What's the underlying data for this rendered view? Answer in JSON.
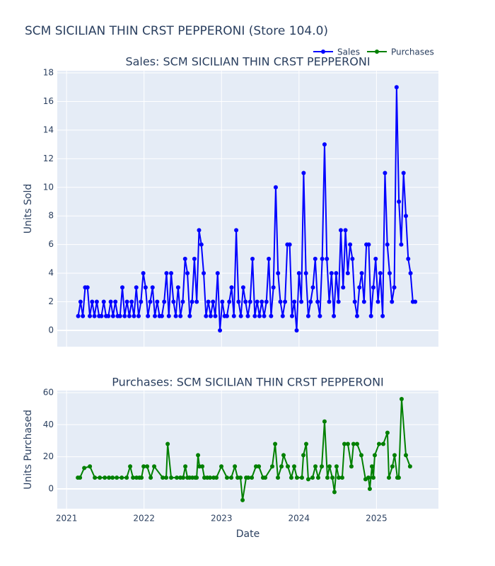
{
  "title": "SCM SICILIAN THIN CRST PEPPERONI (Store 104.0)",
  "chart_data": [
    {
      "type": "line",
      "title": "Sales: SCM SICILIAN THIN CRST PEPPERONI",
      "ylabel": "Units Sold",
      "xlim": [
        2020.88,
        2025.8
      ],
      "xticks": [
        2021,
        2022,
        2023,
        2024,
        2025
      ],
      "ylim": [
        -1.14,
        18.15
      ],
      "yticks": [
        0,
        2,
        4,
        6,
        8,
        10,
        12,
        14,
        16,
        18
      ],
      "grid": true,
      "x": [
        2021.15,
        2021.18,
        2021.21,
        2021.24,
        2021.27,
        2021.3,
        2021.33,
        2021.36,
        2021.39,
        2021.42,
        2021.45,
        2021.48,
        2021.51,
        2021.54,
        2021.57,
        2021.6,
        2021.63,
        2021.66,
        2021.69,
        2021.72,
        2021.75,
        2021.78,
        2021.81,
        2021.84,
        2021.87,
        2021.9,
        2021.93,
        2021.96,
        2021.99,
        2022.02,
        2022.05,
        2022.08,
        2022.11,
        2022.14,
        2022.17,
        2022.2,
        2022.23,
        2022.26,
        2022.29,
        2022.32,
        2022.35,
        2022.38,
        2022.41,
        2022.44,
        2022.47,
        2022.5,
        2022.53,
        2022.56,
        2022.59,
        2022.62,
        2022.65,
        2022.68,
        2022.71,
        2022.74,
        2022.77,
        2022.8,
        2022.83,
        2022.86,
        2022.89,
        2022.92,
        2022.95,
        2022.98,
        2023.01,
        2023.04,
        2023.07,
        2023.1,
        2023.13,
        2023.16,
        2023.19,
        2023.22,
        2023.25,
        2023.28,
        2023.31,
        2023.34,
        2023.37,
        2023.4,
        2023.43,
        2023.46,
        2023.49,
        2023.52,
        2023.55,
        2023.58,
        2023.61,
        2023.64,
        2023.67,
        2023.7,
        2023.73,
        2023.76,
        2023.79,
        2023.82,
        2023.85,
        2023.88,
        2023.91,
        2023.94,
        2023.97,
        2024.0,
        2024.03,
        2024.06,
        2024.09,
        2024.12,
        2024.15,
        2024.18,
        2024.21,
        2024.24,
        2024.27,
        2024.3,
        2024.33,
        2024.36,
        2024.39,
        2024.42,
        2024.45,
        2024.48,
        2024.51,
        2024.54,
        2024.57,
        2024.6,
        2024.63,
        2024.66,
        2024.69,
        2024.72,
        2024.75,
        2024.78,
        2024.81,
        2024.84,
        2024.87,
        2024.9,
        2024.93,
        2024.96,
        2024.99,
        2025.02,
        2025.05,
        2025.08,
        2025.11,
        2025.14,
        2025.17,
        2025.2,
        2025.23,
        2025.26,
        2025.29,
        2025.32,
        2025.35,
        2025.38,
        2025.41,
        2025.44,
        2025.47,
        2025.5
      ],
      "series": [
        {
          "name": "Sales",
          "color": "#0000ff",
          "values": [
            1,
            2,
            1,
            3,
            3,
            1,
            2,
            1,
            2,
            1,
            1,
            2,
            1,
            1,
            2,
            1,
            2,
            1,
            1,
            3,
            1,
            2,
            1,
            2,
            1,
            3,
            1,
            2,
            4,
            3,
            1,
            2,
            3,
            1,
            2,
            1,
            1,
            2,
            4,
            1,
            4,
            2,
            1,
            3,
            1,
            2,
            5,
            4,
            1,
            2,
            5,
            2,
            7,
            6,
            4,
            1,
            2,
            1,
            2,
            1,
            4,
            0,
            2,
            1,
            1,
            2,
            3,
            1,
            7,
            2,
            1,
            3,
            2,
            1,
            2,
            5,
            1,
            2,
            1,
            2,
            1,
            2,
            5,
            1,
            3,
            10,
            4,
            2,
            1,
            2,
            6,
            6,
            1,
            2,
            0,
            4,
            2,
            11,
            4,
            1,
            2,
            3,
            5,
            2,
            1,
            5,
            13,
            5,
            2,
            4,
            1,
            4,
            2,
            7,
            3,
            7,
            4,
            6,
            5,
            2,
            1,
            3,
            4,
            2,
            6,
            6,
            1,
            3,
            5,
            2,
            4,
            1,
            11,
            6,
            4,
            2,
            3,
            17,
            9,
            6,
            11,
            8,
            5,
            4,
            2,
            2
          ]
        }
      ]
    },
    {
      "type": "line",
      "title": "Purchases: SCM SICILIAN THIN CRST PEPPERONI",
      "ylabel": "Units Purchased",
      "xlabel": "Date",
      "xlim": [
        2020.88,
        2025.8
      ],
      "xticks": [
        2021,
        2022,
        2023,
        2024,
        2025
      ],
      "ylim": [
        -12.35,
        61.3
      ],
      "yticks": [
        0,
        20,
        40,
        60
      ],
      "grid": true,
      "x": [
        2021.146,
        2021.173,
        2021.228,
        2021.301,
        2021.365,
        2021.429,
        2021.493,
        2021.547,
        2021.593,
        2021.648,
        2021.712,
        2021.776,
        2021.821,
        2021.858,
        2021.903,
        2021.94,
        2021.967,
        2021.995,
        2022.04,
        2022.086,
        2022.131,
        2022.241,
        2022.286,
        2022.305,
        2022.35,
        2022.423,
        2022.469,
        2022.505,
        2022.533,
        2022.56,
        2022.588,
        2022.624,
        2022.661,
        2022.679,
        2022.697,
        2022.715,
        2022.752,
        2022.779,
        2022.816,
        2022.852,
        2022.898,
        2022.934,
        2022.998,
        2023.071,
        2023.126,
        2023.172,
        2023.208,
        2023.245,
        2023.272,
        2023.318,
        2023.345,
        2023.391,
        2023.445,
        2023.482,
        2023.536,
        2023.564,
        2023.655,
        2023.692,
        2023.728,
        2023.774,
        2023.801,
        2023.856,
        2023.901,
        2023.938,
        2023.974,
        2024.038,
        2024.057,
        2024.093,
        2024.12,
        2024.175,
        2024.212,
        2024.248,
        2024.294,
        2024.33,
        2024.367,
        2024.394,
        2024.431,
        2024.458,
        2024.485,
        2024.513,
        2024.558,
        2024.586,
        2024.631,
        2024.677,
        2024.704,
        2024.75,
        2024.805,
        2024.859,
        2024.896,
        2024.914,
        2024.942,
        2024.96,
        2024.978,
        2025.033,
        2025.088,
        2025.142,
        2025.161,
        2025.206,
        2025.234,
        2025.27,
        2025.288,
        2025.325,
        2025.38,
        2025.434
      ],
      "series": [
        {
          "name": "Purchases",
          "color": "#008000",
          "values": [
            7,
            7,
            13,
            14,
            7,
            7,
            7,
            7,
            7,
            7,
            7,
            7,
            14,
            7,
            7,
            7,
            7,
            14,
            14,
            7,
            14,
            7,
            7,
            28,
            7,
            7,
            7,
            7,
            14,
            7,
            7,
            7,
            7,
            7,
            21,
            14,
            14,
            7,
            7,
            7,
            7,
            7,
            14,
            7,
            7,
            14,
            7,
            7,
            -7,
            7,
            7,
            7,
            14,
            14,
            7,
            7,
            14,
            28,
            7,
            14,
            21,
            14,
            7,
            14,
            7,
            7,
            21,
            28,
            6,
            7,
            14,
            7,
            14,
            42,
            7,
            14,
            7,
            -2,
            14,
            7,
            7,
            28,
            28,
            14,
            28,
            28,
            21,
            6,
            7,
            0,
            14,
            7,
            21,
            28,
            28,
            35,
            7,
            14,
            21,
            7,
            7,
            56,
            21,
            14
          ]
        }
      ]
    }
  ]
}
